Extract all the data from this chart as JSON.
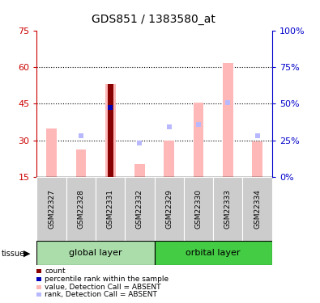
{
  "title": "GDS851 / 1383580_at",
  "samples": [
    "GSM22327",
    "GSM22328",
    "GSM22331",
    "GSM22332",
    "GSM22329",
    "GSM22330",
    "GSM22333",
    "GSM22334"
  ],
  "groups": [
    {
      "name": "global layer",
      "color_light": "#aaddaa",
      "color_dark": "#55cc55"
    },
    {
      "name": "orbital layer",
      "color_light": "#55ee55",
      "color_dark": "#22cc22"
    }
  ],
  "group_ranges": [
    [
      0,
      4
    ],
    [
      4,
      8
    ]
  ],
  "value_bars": [
    35.0,
    26.5,
    53.0,
    20.5,
    30.0,
    45.5,
    61.5,
    29.5
  ],
  "rank_squares": [
    null,
    32.0,
    43.5,
    29.0,
    35.5,
    36.5,
    45.5,
    32.0
  ],
  "count_bar_idx": 2,
  "count_bar_val": 53.0,
  "percentile_bar_idx": 2,
  "percentile_bar_val": 43.5,
  "ylim_left": [
    15,
    75
  ],
  "ylim_right": [
    0,
    100
  ],
  "yticks_left": [
    15,
    30,
    45,
    60,
    75
  ],
  "yticks_right": [
    0,
    25,
    50,
    75,
    100
  ],
  "ytick_labels_left": [
    "15",
    "30",
    "45",
    "60",
    "75"
  ],
  "ytick_labels_right": [
    "0%",
    "25%",
    "50%",
    "75%",
    "100%"
  ],
  "grid_values": [
    30,
    45,
    60
  ],
  "bar_width": 0.35,
  "value_bar_color": "#ffb8b8",
  "rank_square_color": "#b8b8ff",
  "count_bar_color": "#880000",
  "percentile_bar_color": "#0000bb",
  "left_axis_color": "#cc0000",
  "right_axis_color": "#0000cc",
  "legend_items": [
    {
      "color": "#880000",
      "label": "count"
    },
    {
      "color": "#0000bb",
      "label": "percentile rank within the sample"
    },
    {
      "color": "#ffb8b8",
      "label": "value, Detection Call = ABSENT"
    },
    {
      "color": "#b8b8ff",
      "label": "rank, Detection Call = ABSENT"
    }
  ],
  "bg_color_sample_labels": "#cccccc",
  "group_colors": [
    "#aaddaa",
    "#44cc44"
  ],
  "group_border_color": "#000000"
}
